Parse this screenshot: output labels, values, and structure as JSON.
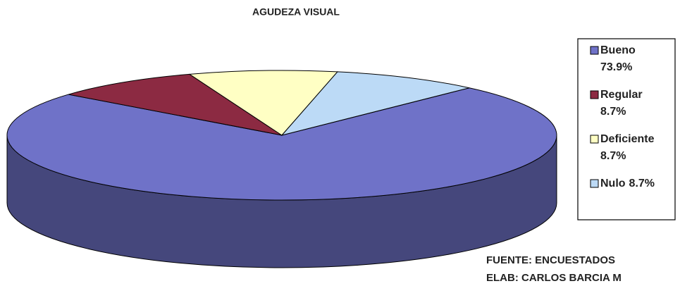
{
  "chart_data": {
    "type": "pie",
    "title": "AGUDEZA VISUAL",
    "categories": [
      "Bueno",
      "Regular",
      "Deficiente",
      "Nulo"
    ],
    "values": [
      73.9,
      8.7,
      8.7,
      8.7
    ],
    "value_labels": [
      "73.9%",
      "8.7%",
      "8.7%",
      "8.7%"
    ],
    "colors": [
      "#6f72c8",
      "#8c2a42",
      "#ffffc4",
      "#bcdaf6"
    ],
    "legend": "right",
    "annotations": [
      "FUENTE: ENCUESTADOS",
      "ELAB: CARLOS BARCIA M"
    ]
  }
}
